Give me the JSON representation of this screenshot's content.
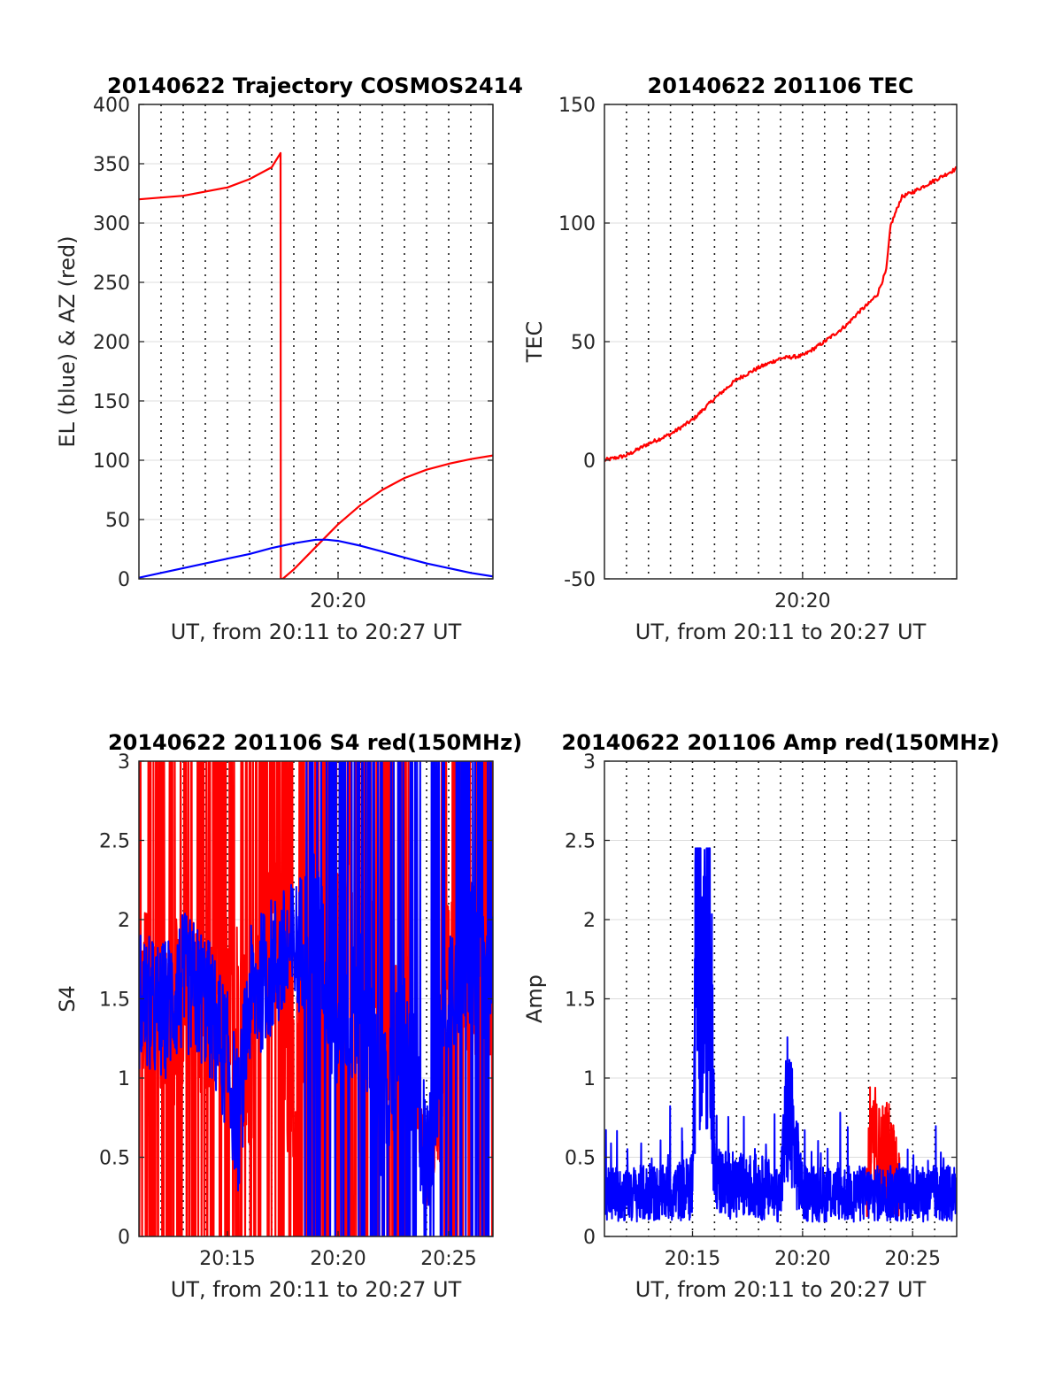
{
  "colors": {
    "red": "#ff0000",
    "blue": "#0000ff"
  },
  "chart_data": [
    {
      "type": "line",
      "title": "20140622 Trajectory COSMOS2414",
      "xlabel": "UT, from 20:11 to 20:27 UT",
      "ylabel": "EL (blue) & AZ (red)",
      "xlim": [
        0,
        16
      ],
      "ylim": [
        0,
        400
      ],
      "yticks": [
        0,
        50,
        100,
        150,
        200,
        250,
        300,
        350,
        400
      ],
      "xticks": [
        {
          "x": 9,
          "label": "20:20"
        }
      ],
      "vgrid": [
        1,
        2,
        3,
        4,
        5,
        6,
        7,
        8,
        9,
        10,
        11,
        12,
        13,
        14,
        15
      ],
      "series": [
        {
          "color": "red",
          "x": [
            0,
            2,
            4,
            5,
            6,
            6.4,
            6.41,
            6.5,
            7,
            8,
            9,
            10,
            11,
            12,
            13,
            14,
            15,
            16
          ],
          "y": [
            320,
            323,
            330,
            337,
            347,
            359,
            0,
            0,
            8,
            27,
            46,
            62,
            75,
            85,
            92,
            97,
            101,
            104
          ]
        },
        {
          "color": "blue",
          "x": [
            0,
            1,
            2,
            3,
            4,
            5,
            6,
            7,
            8,
            8.5,
            9,
            10,
            11,
            12,
            13,
            14,
            15,
            16
          ],
          "y": [
            1,
            5,
            9,
            13,
            17,
            21,
            26,
            30,
            33,
            33,
            32,
            28,
            23,
            18,
            13,
            9,
            5,
            2
          ]
        }
      ]
    },
    {
      "type": "line",
      "title": "20140622 201106 TEC",
      "xlabel": "UT, from 20:11 to 20:27 UT",
      "ylabel": "TEC",
      "xlim": [
        0,
        16
      ],
      "ylim": [
        -50,
        150
      ],
      "yticks": [
        -50,
        0,
        50,
        100,
        150
      ],
      "xticks": [
        {
          "x": 9,
          "label": "20:20"
        }
      ],
      "vgrid": [
        1,
        2,
        3,
        4,
        5,
        6,
        7,
        8,
        9,
        10,
        11,
        12,
        13,
        14,
        15
      ],
      "series": [
        {
          "color": "red",
          "x": [
            0,
            1,
            2,
            3,
            4,
            5,
            6,
            7,
            8,
            9,
            10,
            11,
            11.5,
            12,
            12.4,
            12.8,
            13,
            13.5,
            14,
            15,
            16
          ],
          "y": [
            0,
            2,
            7,
            11,
            17,
            26,
            34,
            39,
            43,
            44,
            50,
            57,
            62,
            66,
            70,
            80,
            99,
            111,
            113,
            118,
            123
          ]
        }
      ]
    },
    {
      "type": "line",
      "title": "20140622 201106 S4 red(150MHz)",
      "xlabel": "UT, from 20:11 to 20:27 UT",
      "ylabel": "S4",
      "xlim": [
        0,
        16
      ],
      "ylim": [
        0,
        3
      ],
      "yticks": [
        0,
        0.5,
        1,
        1.5,
        2,
        2.5,
        3
      ],
      "xticks": [
        {
          "x": 4,
          "label": "20:15"
        },
        {
          "x": 9,
          "label": "20:20"
        },
        {
          "x": 14,
          "label": "20:25"
        }
      ],
      "vgrid": [
        1,
        2,
        3,
        4,
        5,
        6,
        7,
        8,
        9,
        10,
        11,
        12,
        13,
        14,
        15
      ],
      "series": [
        {
          "color": "red",
          "x": [
            0,
            2,
            4,
            5,
            6,
            6.5,
            7,
            8,
            9,
            10,
            11,
            12,
            12.5,
            13,
            13.5,
            14,
            15,
            16
          ],
          "y": [
            1.5,
            1.4,
            1.6,
            1.1,
            2.2,
            1.2,
            1.0,
            1.9,
            2.0,
            2.2,
            1.4,
            1.5,
            0.9,
            0.4,
            0.7,
            1.8,
            1.7,
            1.6
          ]
        },
        {
          "color": "blue",
          "x": [
            0,
            1,
            2,
            3,
            4,
            4.5,
            5,
            6,
            7,
            8,
            9,
            10,
            11,
            12,
            13,
            14,
            15,
            16
          ],
          "y": [
            1.5,
            1.4,
            1.6,
            1.5,
            1.1,
            0.7,
            1.5,
            1.7,
            1.8,
            2.0,
            1.2,
            1.5,
            0.8,
            1.3,
            0.5,
            1.6,
            1.8,
            1.6
          ]
        }
      ]
    },
    {
      "type": "line",
      "title": "20140622 201106 Amp red(150MHz)",
      "xlabel": "UT, from 20:11 to 20:27 UT",
      "ylabel": "Amp",
      "xlim": [
        0,
        16
      ],
      "ylim": [
        0,
        3
      ],
      "yticks": [
        0,
        0.5,
        1,
        1.5,
        2,
        2.5,
        3
      ],
      "xticks": [
        {
          "x": 4,
          "label": "20:15"
        },
        {
          "x": 9,
          "label": "20:20"
        },
        {
          "x": 14,
          "label": "20:25"
        }
      ],
      "vgrid": [
        1,
        2,
        3,
        4,
        5,
        6,
        7,
        8,
        9,
        10,
        11,
        12,
        13,
        14,
        15
      ],
      "series": [
        {
          "color": "red",
          "x": [
            11.9,
            12.2,
            12.5,
            12.8,
            13.1,
            13.4
          ],
          "y": [
            0.4,
            0.6,
            0.55,
            0.6,
            0.5,
            0.35
          ]
        },
        {
          "color": "blue",
          "x": [
            0,
            1,
            2,
            3,
            4,
            4.2,
            4.5,
            4.8,
            5.0,
            6,
            7,
            8,
            8.3,
            9,
            10,
            11,
            12,
            13,
            14,
            15,
            16
          ],
          "y": [
            0.3,
            0.3,
            0.3,
            0.3,
            0.35,
            2.4,
            1.6,
            2.35,
            0.4,
            0.35,
            0.35,
            0.3,
            0.9,
            0.3,
            0.3,
            0.3,
            0.3,
            0.3,
            0.3,
            0.3,
            0.3
          ]
        }
      ]
    }
  ]
}
